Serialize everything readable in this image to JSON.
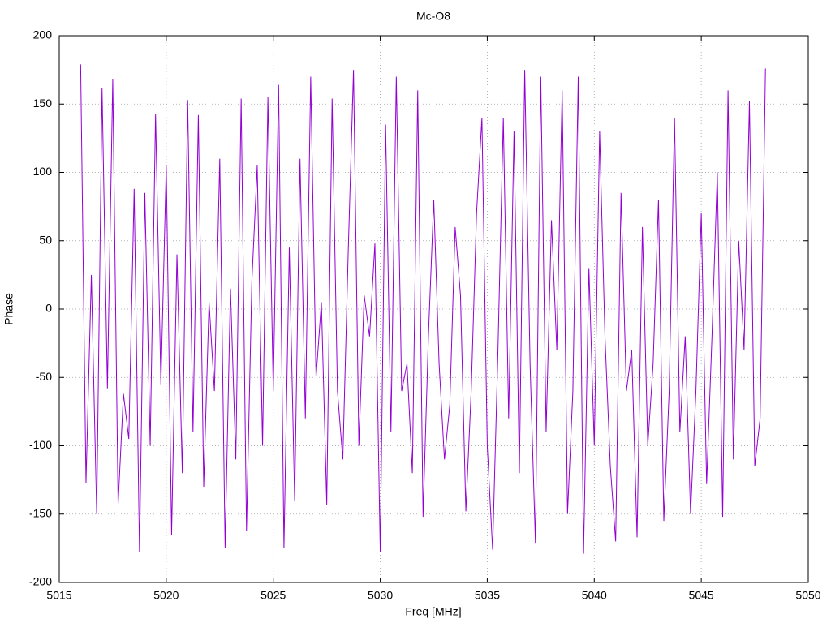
{
  "chart_data": {
    "type": "line",
    "title": "Mc-O8",
    "x_label": "Freq [MHz]",
    "y_label": "Phase",
    "xlim": [
      5015,
      5050
    ],
    "xticks": [
      5015,
      5020,
      5025,
      5030,
      5035,
      5040,
      5045,
      5050
    ],
    "ylim": [
      -200,
      200
    ],
    "yticks": [
      -200,
      -150,
      -100,
      -50,
      0,
      50,
      100,
      150,
      200
    ],
    "grid": true,
    "series": [
      {
        "name": "Phase",
        "color": "#9400d3",
        "x": [
          5016,
          5016.25,
          5016.5,
          5016.75,
          5017,
          5017.25,
          5017.5,
          5017.75,
          5018,
          5018.25,
          5018.5,
          5018.75,
          5019,
          5019.25,
          5019.5,
          5019.75,
          5020,
          5020.25,
          5020.5,
          5020.75,
          5021,
          5021.25,
          5021.5,
          5021.75,
          5022,
          5022.25,
          5022.5,
          5022.75,
          5023,
          5023.25,
          5023.5,
          5023.75,
          5024,
          5024.25,
          5024.5,
          5024.75,
          5025,
          5025.25,
          5025.5,
          5025.75,
          5026,
          5026.25,
          5026.5,
          5026.75,
          5027,
          5027.25,
          5027.5,
          5027.75,
          5028,
          5028.25,
          5028.5,
          5028.75,
          5029,
          5029.25,
          5029.5,
          5029.75,
          5030,
          5030.25,
          5030.5,
          5030.75,
          5031,
          5031.25,
          5031.5,
          5031.75,
          5032,
          5032.25,
          5032.5,
          5032.75,
          5033,
          5033.25,
          5033.5,
          5033.75,
          5034,
          5034.25,
          5034.5,
          5034.75,
          5035,
          5035.25,
          5035.5,
          5035.75,
          5036,
          5036.25,
          5036.5,
          5036.75,
          5037,
          5037.25,
          5037.5,
          5037.75,
          5038,
          5038.25,
          5038.5,
          5038.75,
          5039,
          5039.25,
          5039.5,
          5039.75,
          5040,
          5040.25,
          5040.5,
          5040.75,
          5041,
          5041.25,
          5041.5,
          5041.75,
          5042,
          5042.25,
          5042.5,
          5042.75,
          5043,
          5043.25,
          5043.5,
          5043.75,
          5044,
          5044.25,
          5044.5,
          5044.75,
          5045,
          5045.25,
          5045.5,
          5045.75,
          5046,
          5046.25,
          5046.5,
          5046.75,
          5047,
          5047.25,
          5047.5,
          5047.75,
          5048
        ],
        "values": [
          179,
          -127,
          25,
          -150,
          162,
          -58,
          168,
          -143,
          -62,
          -95,
          88,
          -178,
          85,
          -100,
          143,
          -55,
          105,
          -165,
          40,
          -120,
          153,
          -90,
          142,
          -130,
          5,
          -60,
          110,
          -175,
          15,
          -110,
          154,
          -162,
          20,
          105,
          -100,
          155,
          -60,
          164,
          -175,
          45,
          -140,
          110,
          -80,
          170,
          -50,
          5,
          -143,
          154,
          -60,
          -110,
          40,
          175,
          -100,
          10,
          -20,
          48,
          -178,
          135,
          -90,
          170,
          -60,
          -40,
          -120,
          160,
          -152,
          -20,
          80,
          -40,
          -110,
          -70,
          60,
          10,
          -148,
          -60,
          70,
          140,
          -100,
          -176,
          -30,
          140,
          -80,
          130,
          -120,
          175,
          -40,
          -171,
          170,
          -90,
          65,
          -30,
          160,
          -150,
          -60,
          170,
          -179,
          30,
          -100,
          130,
          -20,
          -115,
          -170,
          85,
          -60,
          -30,
          -167,
          60,
          -100,
          -40,
          80,
          -155,
          -60,
          140,
          -90,
          -20,
          -150,
          -60,
          70,
          -128,
          -20,
          100,
          -152,
          160,
          -110,
          50,
          -30,
          152,
          -115,
          -80,
          176
        ]
      }
    ]
  }
}
